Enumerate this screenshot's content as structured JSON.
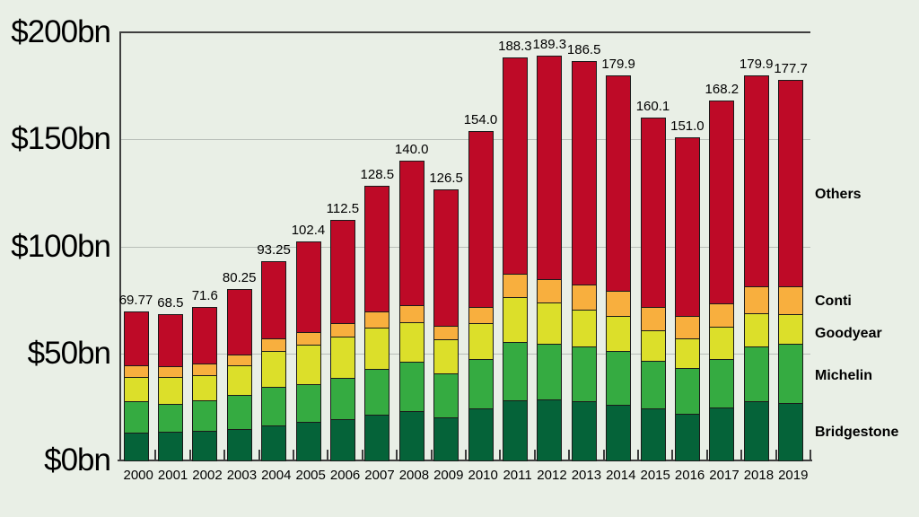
{
  "chart_data": {
    "type": "bar",
    "stacked": true,
    "title": "",
    "unit": "$bn",
    "background": "#e9efe6",
    "categories": [
      "2000",
      "2001",
      "2002",
      "2003",
      "2004",
      "2005",
      "2006",
      "2007",
      "2008",
      "2009",
      "2010",
      "2011",
      "2012",
      "2013",
      "2014",
      "2015",
      "2016",
      "2017",
      "2018",
      "2019"
    ],
    "totals": [
      "69.77",
      "68.5",
      "71.6",
      "80.25",
      "93.25",
      "102.4",
      "112.5",
      "128.5",
      "140.0",
      "126.5",
      "154.0",
      "188.3",
      "189.3",
      "186.5",
      "179.9",
      "160.1",
      "151.0",
      "168.2",
      "179.9",
      "177.7"
    ],
    "series": [
      {
        "name": "Bridgestone",
        "color": "#056339",
        "values": [
          13.1,
          13.3,
          13.7,
          14.7,
          16.5,
          17.9,
          19.3,
          21.4,
          23.1,
          20.1,
          24.3,
          28.1,
          28.6,
          27.5,
          26.1,
          24.2,
          21.9,
          24.7,
          27.5,
          26.7
        ]
      },
      {
        "name": "Michelin",
        "color": "#35ab41",
        "values": [
          14.4,
          13.0,
          14.3,
          16.0,
          18.0,
          17.7,
          19.4,
          21.5,
          23.0,
          20.6,
          23.1,
          27.4,
          25.9,
          25.9,
          24.9,
          22.2,
          21.4,
          22.8,
          25.9,
          27.6
        ]
      },
      {
        "name": "Goodyear",
        "color": "#dcdf2a",
        "values": [
          11.5,
          12.6,
          11.8,
          13.6,
          16.5,
          18.5,
          19.0,
          19.3,
          18.6,
          15.8,
          16.8,
          20.9,
          19.2,
          16.9,
          16.5,
          14.4,
          13.7,
          15.0,
          15.5,
          14.2
        ]
      },
      {
        "name": "Conti",
        "color": "#f8af3e",
        "values": [
          5.3,
          5.1,
          5.4,
          5.0,
          5.9,
          6.0,
          6.6,
          7.4,
          8.0,
          6.3,
          7.6,
          10.9,
          11.1,
          11.7,
          11.7,
          10.8,
          10.7,
          10.9,
          12.6,
          12.7
        ]
      },
      {
        "name": "Others",
        "color": "#be0a27",
        "values": [
          25.47,
          24.5,
          26.4,
          30.95,
          36.35,
          42.3,
          48.2,
          58.9,
          67.3,
          63.7,
          82.2,
          101.0,
          104.5,
          104.5,
          100.7,
          88.5,
          83.3,
          94.8,
          98.4,
          96.5
        ]
      }
    ],
    "y_axis": {
      "max": 200,
      "ticks": [
        {
          "value": 0,
          "label": "$0bn"
        },
        {
          "value": 50,
          "label": "$50bn"
        },
        {
          "value": 100,
          "label": "$100bn"
        },
        {
          "value": 150,
          "label": "$150bn"
        },
        {
          "value": 200,
          "label": "$200bn"
        }
      ],
      "gridlines": [
        50,
        100,
        150
      ]
    },
    "legend_position": "right",
    "legend": [
      "Others",
      "Conti",
      "Goodyear",
      "Michelin",
      "Bridgestone"
    ],
    "grid": true
  }
}
